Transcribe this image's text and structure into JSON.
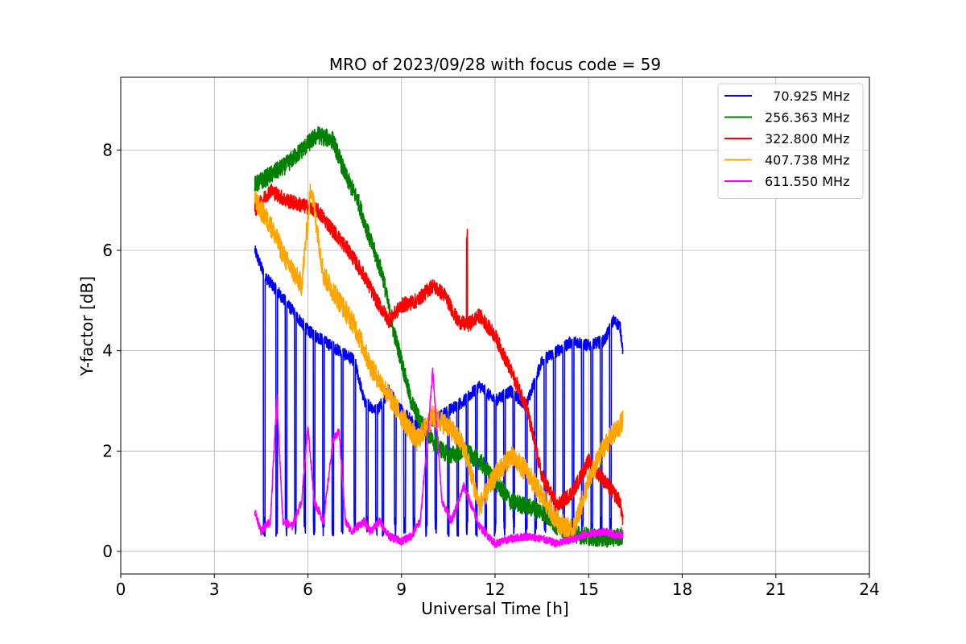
{
  "chart_data": {
    "type": "line",
    "title": "MRO of 2023/09/28 with focus code = 59",
    "xlabel": "Universal Time [h]",
    "ylabel": "Y-factor [dB]",
    "xlim": [
      0,
      24
    ],
    "ylim": [
      -0.45,
      9.45
    ],
    "xticks": [
      0,
      3,
      6,
      9,
      12,
      15,
      18,
      21,
      24
    ],
    "yticks": [
      0,
      2,
      4,
      6,
      8
    ],
    "grid": true,
    "legend_position": "top-right",
    "series": [
      {
        "name": "  70.925 MHz",
        "color": "#0000ff",
        "x": [
          4.3,
          4.6,
          5.0,
          5.5,
          6.0,
          6.5,
          7.0,
          7.5,
          7.8,
          8.2,
          8.6,
          9.0,
          9.5,
          10.0,
          10.5,
          11.0,
          11.5,
          12.0,
          12.5,
          13.0,
          13.5,
          14.0,
          14.5,
          15.0,
          15.5,
          15.8,
          16.0,
          16.1
        ],
        "y": [
          6.0,
          5.5,
          5.2,
          4.8,
          4.4,
          4.2,
          4.0,
          3.8,
          3.0,
          2.8,
          3.2,
          2.8,
          2.5,
          2.6,
          2.8,
          3.0,
          3.3,
          3.0,
          3.2,
          2.9,
          3.8,
          4.0,
          4.2,
          4.1,
          4.2,
          4.6,
          4.5,
          4.0
        ],
        "dips_to": 0.3,
        "dip_times": [
          4.6,
          5.0,
          5.3,
          5.6,
          5.9,
          6.2,
          6.5,
          6.8,
          7.1,
          7.5,
          7.9,
          8.2,
          8.4,
          8.8,
          9.1,
          9.4,
          9.8,
          10.1,
          10.5,
          10.8,
          11.1,
          11.4,
          11.7,
          12.0,
          12.3,
          12.6,
          13.0,
          13.3,
          13.6,
          13.9,
          14.2,
          14.5,
          14.8,
          15.1,
          15.4,
          15.7
        ],
        "noise": 0.12
      },
      {
        "name": "256.363 MHz",
        "color": "#008000",
        "x": [
          4.3,
          4.8,
          5.3,
          5.8,
          6.3,
          6.8,
          7.2,
          7.6,
          8.0,
          8.4,
          8.7,
          9.0,
          9.3,
          9.6,
          10.0,
          10.5,
          11.0,
          11.5,
          12.0,
          12.5,
          13.0,
          13.5,
          14.0,
          14.5,
          15.0,
          15.5,
          16.0,
          16.1
        ],
        "y": [
          7.3,
          7.5,
          7.7,
          8.0,
          8.3,
          8.2,
          7.5,
          7.0,
          6.2,
          5.5,
          4.5,
          3.8,
          3.0,
          2.6,
          2.2,
          1.9,
          2.0,
          1.8,
          1.4,
          1.0,
          0.9,
          0.8,
          0.5,
          0.35,
          0.3,
          0.25,
          0.3,
          0.3
        ],
        "noise": 0.18
      },
      {
        "name": "322.800 MHz",
        "color": "#ff0000",
        "x": [
          4.3,
          4.8,
          5.3,
          5.8,
          6.3,
          6.8,
          7.3,
          7.8,
          8.2,
          8.6,
          9.0,
          9.5,
          10.0,
          10.4,
          10.8,
          11.1,
          11.5,
          12.0,
          12.5,
          13.0,
          13.5,
          14.0,
          14.5,
          15.0,
          15.5,
          16.0,
          16.1
        ],
        "y": [
          6.8,
          7.2,
          7.0,
          6.9,
          6.8,
          6.4,
          6.0,
          5.5,
          5.0,
          4.6,
          4.9,
          5.0,
          5.3,
          5.1,
          4.6,
          4.5,
          4.7,
          4.3,
          3.6,
          2.9,
          1.5,
          0.9,
          1.2,
          1.8,
          1.4,
          1.0,
          0.6
        ],
        "spike": {
          "x": 11.1,
          "y": 6.5
        },
        "noise": 0.15
      },
      {
        "name": "407.738 MHz",
        "color": "#ffa500",
        "x": [
          4.3,
          4.8,
          5.3,
          5.8,
          6.1,
          6.5,
          7.0,
          7.5,
          8.0,
          8.5,
          9.0,
          9.5,
          10.0,
          10.5,
          11.0,
          11.5,
          12.0,
          12.5,
          13.0,
          13.5,
          14.0,
          14.5,
          15.0,
          15.5,
          16.0,
          16.1
        ],
        "y": [
          7.0,
          6.5,
          5.8,
          5.3,
          7.3,
          5.5,
          5.0,
          4.5,
          3.7,
          3.2,
          2.7,
          2.2,
          2.7,
          2.5,
          2.1,
          0.9,
          1.5,
          1.9,
          1.6,
          1.1,
          0.6,
          0.4,
          1.4,
          2.1,
          2.5,
          2.6
        ],
        "noise": 0.22
      },
      {
        "name": "611.550 MHz",
        "color": "#ff00ff",
        "x": [
          4.3,
          4.5,
          4.8,
          5.0,
          5.2,
          5.5,
          5.8,
          6.0,
          6.2,
          6.5,
          6.8,
          7.0,
          7.2,
          7.4,
          7.8,
          8.0,
          8.3,
          8.6,
          9.0,
          9.3,
          9.6,
          9.8,
          10.0,
          10.3,
          10.6,
          11.0,
          11.5,
          12.0,
          12.5,
          13.0,
          13.5,
          14.0,
          14.5,
          15.0,
          15.5,
          16.0,
          16.1
        ],
        "y": [
          0.8,
          0.4,
          0.6,
          3.1,
          0.6,
          0.5,
          1.0,
          2.5,
          1.0,
          0.6,
          2.2,
          2.4,
          0.6,
          0.4,
          0.6,
          0.4,
          0.6,
          0.3,
          0.2,
          0.3,
          0.6,
          2.0,
          3.6,
          1.0,
          0.6,
          1.3,
          0.5,
          0.15,
          0.25,
          0.3,
          0.25,
          0.15,
          0.25,
          0.35,
          0.4,
          0.3,
          0.35
        ],
        "noise": 0.08
      }
    ]
  }
}
